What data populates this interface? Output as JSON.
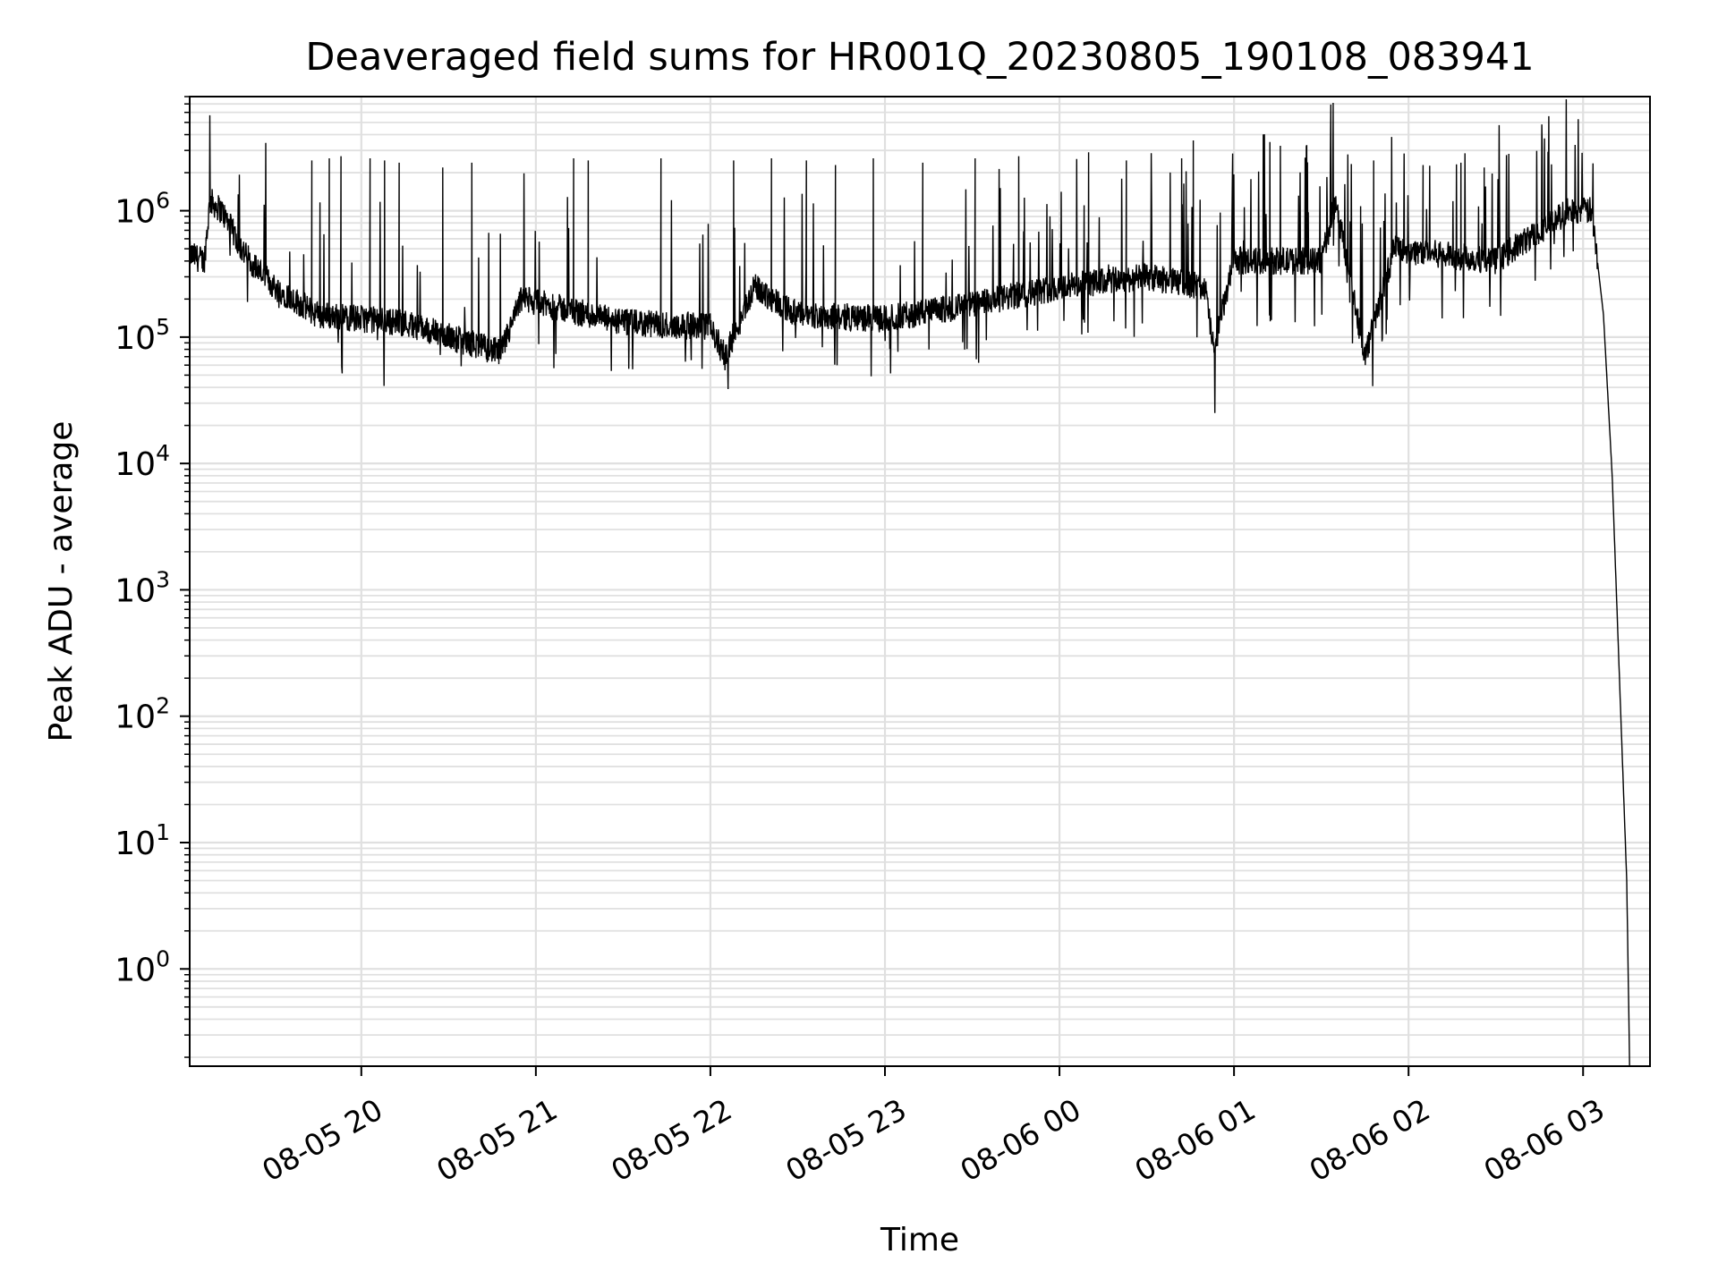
{
  "chart_data": {
    "type": "line",
    "title": "Deaveraged field sums for HR001Q_20230805_190108_083941",
    "xlabel": "Time",
    "ylabel": "Peak ADU - average",
    "yscale": "log",
    "ylim": [
      0.17,
      8000000
    ],
    "xlim": [
      "2023-08-05T19:01",
      "2023-08-06T03:23"
    ],
    "grid": true,
    "x_ticks": [
      {
        "t": "2023-08-05T20:00",
        "label": "08-05 20"
      },
      {
        "t": "2023-08-05T21:00",
        "label": "08-05 21"
      },
      {
        "t": "2023-08-05T22:00",
        "label": "08-05 22"
      },
      {
        "t": "2023-08-05T23:00",
        "label": "08-05 23"
      },
      {
        "t": "2023-08-06T00:00",
        "label": "08-06 00"
      },
      {
        "t": "2023-08-06T01:00",
        "label": "08-06 01"
      },
      {
        "t": "2023-08-06T02:00",
        "label": "08-06 02"
      },
      {
        "t": "2023-08-06T03:00",
        "label": "08-06 03"
      }
    ],
    "y_ticks": [
      {
        "exp": 0,
        "label": "10",
        "sup": "0"
      },
      {
        "exp": 1,
        "label": "10",
        "sup": "1"
      },
      {
        "exp": 2,
        "label": "10",
        "sup": "2"
      },
      {
        "exp": 3,
        "label": "10",
        "sup": "3"
      },
      {
        "exp": 4,
        "label": "10",
        "sup": "4"
      },
      {
        "exp": 5,
        "label": "10",
        "sup": "5"
      },
      {
        "exp": 6,
        "label": "10",
        "sup": "6"
      }
    ],
    "series": [
      {
        "color": "#000000",
        "baseline": [
          [
            "2023-08-05T19:01",
            450000
          ],
          [
            "2023-08-05T19:06",
            400000
          ],
          [
            "2023-08-05T19:08",
            1200000
          ],
          [
            "2023-08-05T19:12",
            1000000
          ],
          [
            "2023-08-05T19:20",
            450000
          ],
          [
            "2023-08-05T19:30",
            250000
          ],
          [
            "2023-08-05T19:45",
            150000
          ],
          [
            "2023-08-05T20:15",
            130000
          ],
          [
            "2023-08-05T20:48",
            75000
          ],
          [
            "2023-08-05T20:55",
            200000
          ],
          [
            "2023-08-05T21:30",
            130000
          ],
          [
            "2023-08-05T22:00",
            120000
          ],
          [
            "2023-08-05T22:05",
            70000
          ],
          [
            "2023-08-05T22:15",
            250000
          ],
          [
            "2023-08-05T22:30",
            150000
          ],
          [
            "2023-08-05T23:00",
            140000
          ],
          [
            "2023-08-05T23:30",
            180000
          ],
          [
            "2023-08-06T00:00",
            250000
          ],
          [
            "2023-08-06T00:30",
            300000
          ],
          [
            "2023-08-06T00:50",
            250000
          ],
          [
            "2023-08-06T00:53",
            80000
          ],
          [
            "2023-08-06T01:00",
            400000
          ],
          [
            "2023-08-06T01:30",
            400000
          ],
          [
            "2023-08-06T01:35",
            1200000
          ],
          [
            "2023-08-06T01:45",
            70000
          ],
          [
            "2023-08-06T01:55",
            500000
          ],
          [
            "2023-08-06T02:30",
            400000
          ],
          [
            "2023-08-06T02:55",
            1000000
          ],
          [
            "2023-08-06T03:03",
            1000000
          ],
          [
            "2023-08-06T03:07",
            150000
          ],
          [
            "2023-08-06T03:10",
            8000
          ],
          [
            "2023-08-06T03:15",
            5
          ],
          [
            "2023-08-06T03:16",
            0.17
          ]
        ],
        "spikes": [
          [
            "2023-08-05T19:43",
            2500000
          ],
          [
            "2023-08-05T19:49",
            2600000
          ],
          [
            "2023-08-05T19:53",
            2700000
          ],
          [
            "2023-08-05T20:03",
            2600000
          ],
          [
            "2023-08-05T20:08",
            2500000
          ],
          [
            "2023-08-05T20:13",
            2400000
          ],
          [
            "2023-08-05T20:28",
            2200000
          ],
          [
            "2023-08-05T20:38",
            2400000
          ],
          [
            "2023-08-05T21:13",
            2600000
          ],
          [
            "2023-08-05T21:18",
            2500000
          ],
          [
            "2023-08-05T21:43",
            2600000
          ],
          [
            "2023-08-05T22:08",
            2500000
          ],
          [
            "2023-08-05T22:21",
            2600000
          ],
          [
            "2023-08-05T22:33",
            2500000
          ],
          [
            "2023-08-05T22:43",
            2300000
          ],
          [
            "2023-08-05T22:56",
            2600000
          ],
          [
            "2023-08-05T23:13",
            2400000
          ],
          [
            "2023-08-05T23:31",
            2600000
          ],
          [
            "2023-08-05T23:46",
            2700000
          ],
          [
            "2023-08-06T00:10",
            2900000
          ],
          [
            "2023-08-06T00:23",
            2500000
          ],
          [
            "2023-08-06T00:42",
            2600000
          ],
          [
            "2023-08-06T00:46",
            3600000
          ],
          [
            "2023-08-06T01:25",
            3300000
          ],
          [
            "2023-08-06T01:48",
            2500000
          ],
          [
            "2023-08-06T02:05",
            2300000
          ],
          [
            "2023-08-06T02:18",
            2400000
          ],
          [
            "2023-08-06T02:26",
            2200000
          ]
        ]
      }
    ]
  }
}
